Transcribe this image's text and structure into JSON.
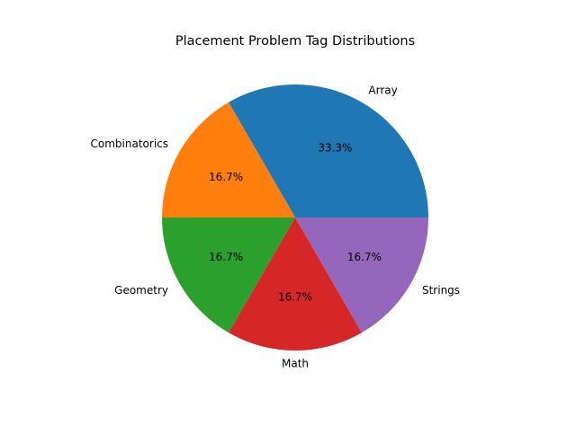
{
  "chart_data": {
    "type": "pie",
    "title": "Placement Problem Tag Distributions",
    "categories": [
      "Array",
      "Combinatorics",
      "Geometry",
      "Math",
      "Strings"
    ],
    "values": [
      2,
      1,
      1,
      1,
      1
    ],
    "percent_labels": [
      "33.3%",
      "16.7%",
      "16.7%",
      "16.7%",
      "16.7%"
    ],
    "colors": [
      "#1f77b4",
      "#ff7f0e",
      "#2ca02c",
      "#d62728",
      "#9467bd"
    ],
    "start_angle_deg": 0,
    "direction": "counterclockwise",
    "legend": "none"
  }
}
